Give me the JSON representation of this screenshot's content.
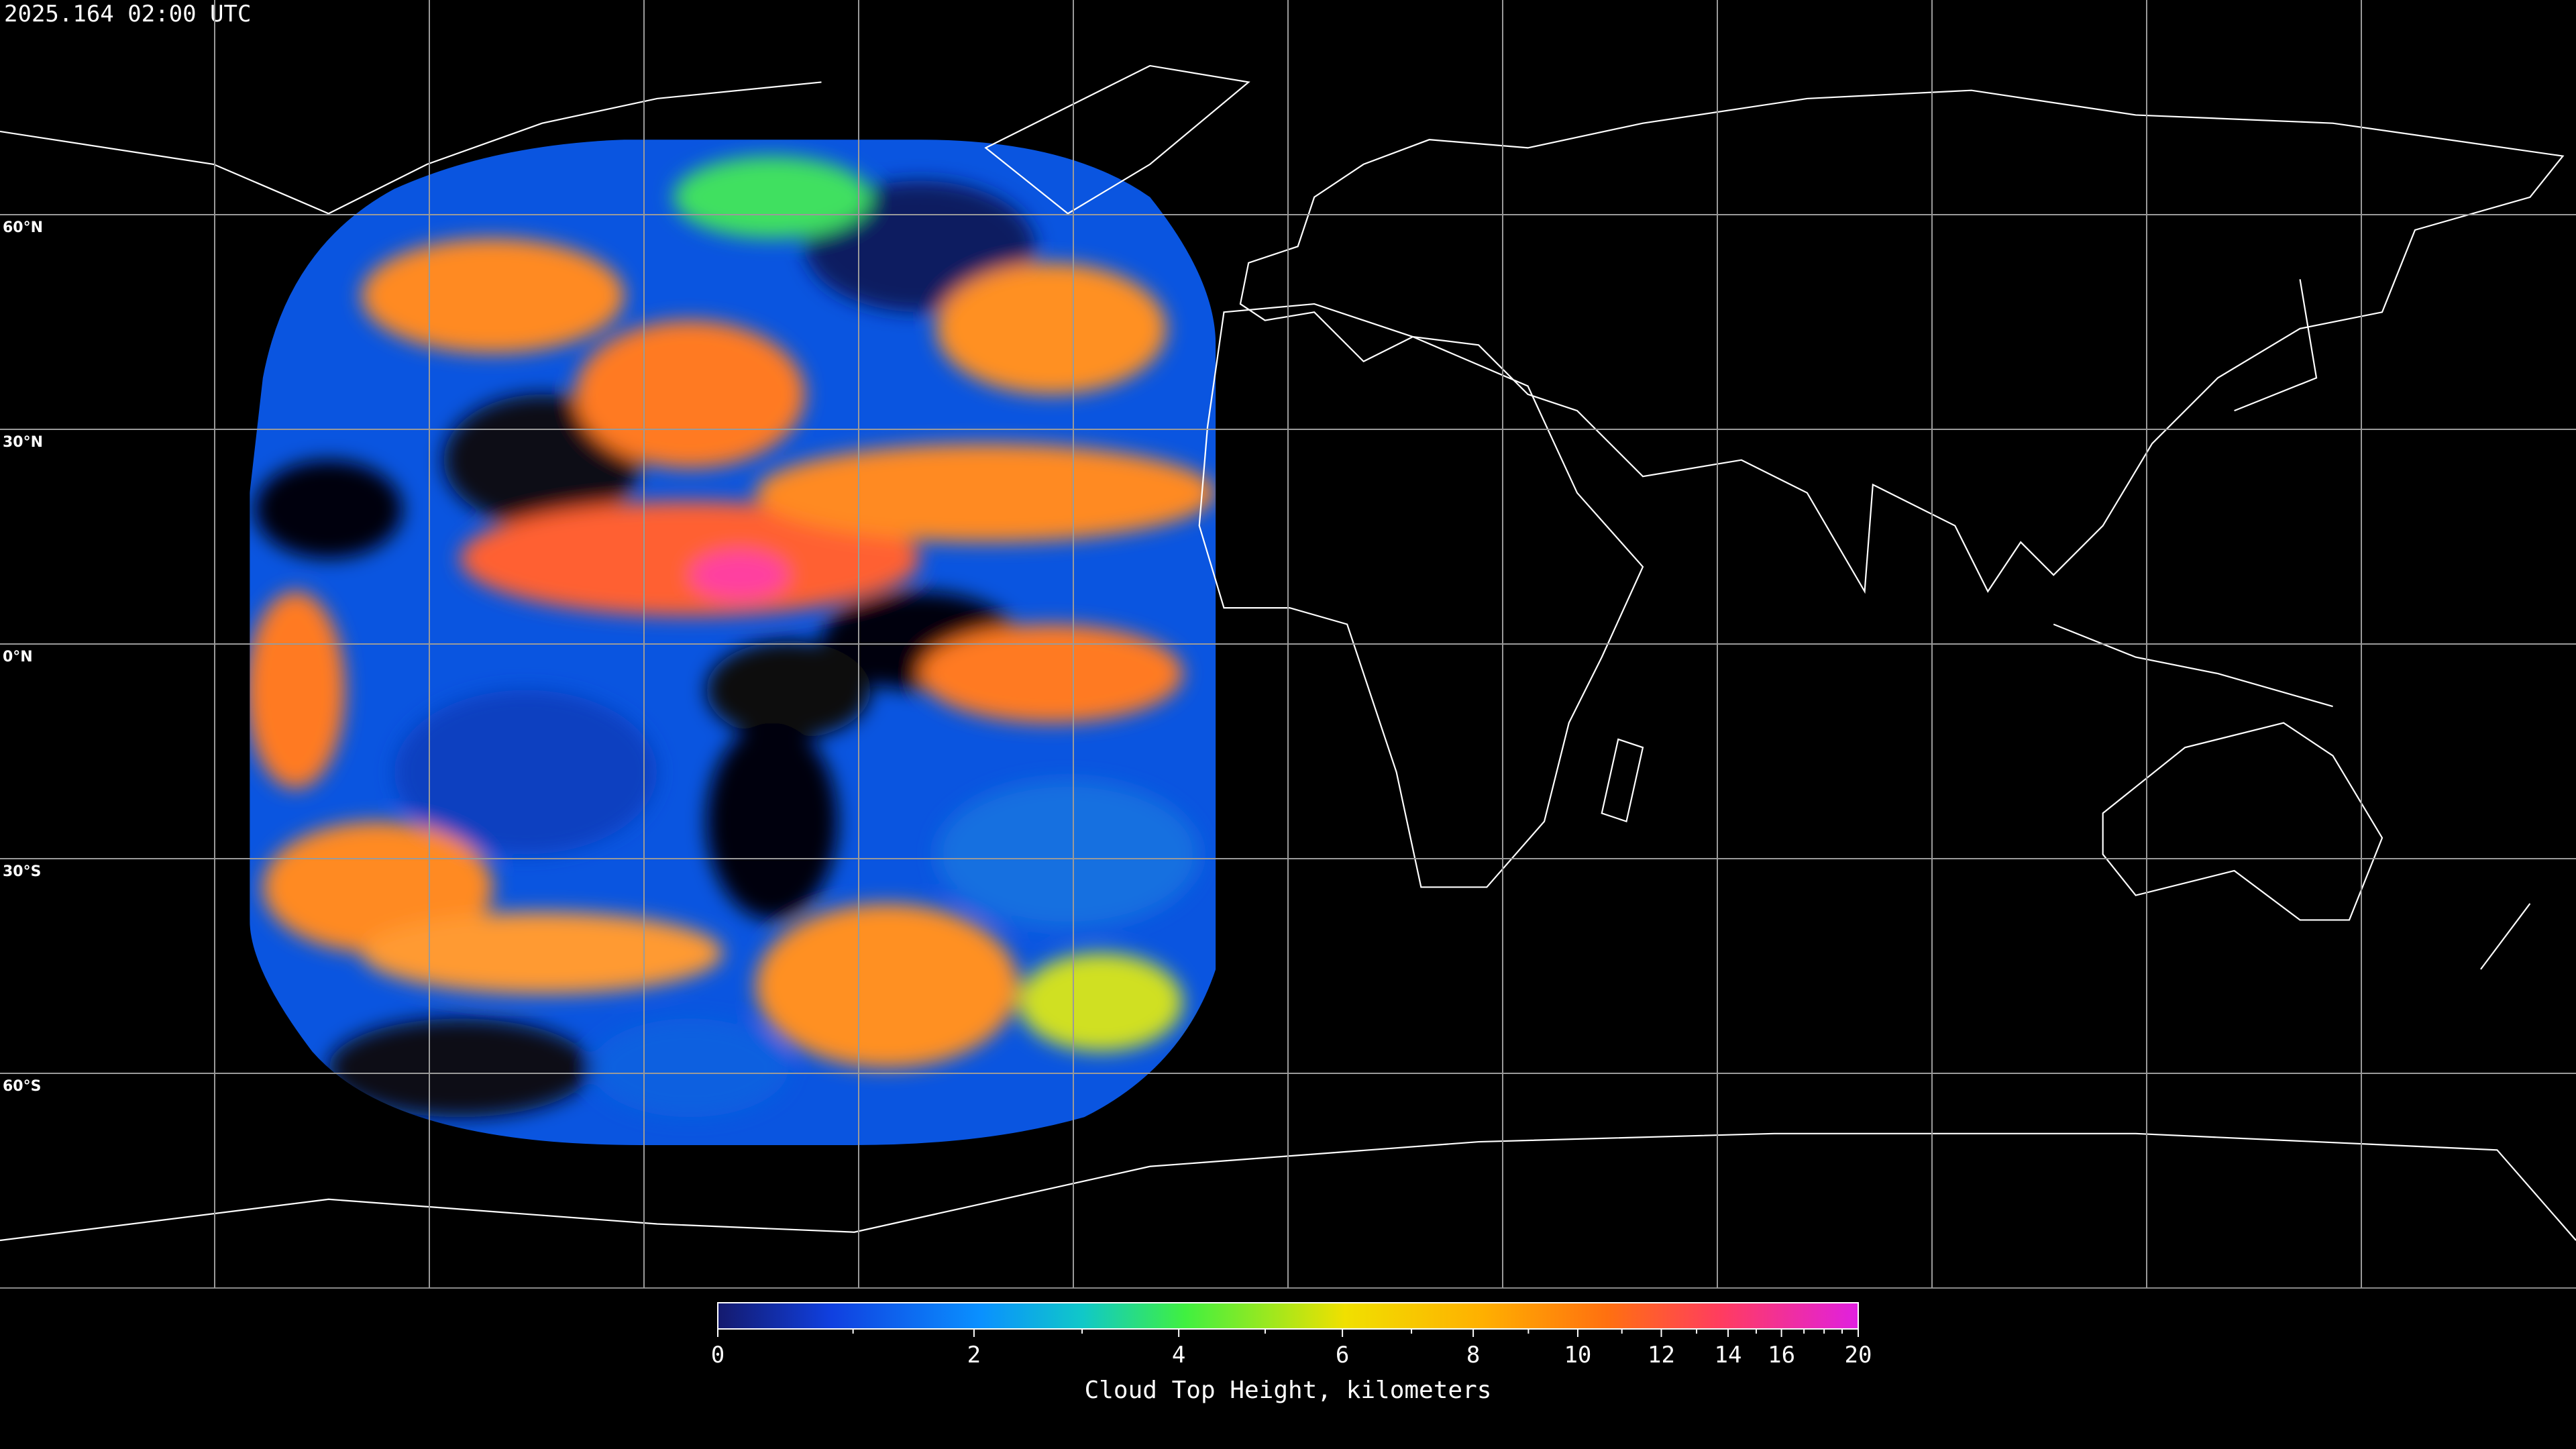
{
  "header": {
    "timestamp": "2025.164 02:00 UTC"
  },
  "map": {
    "type": "map",
    "projection": "equirectangular",
    "xlim": [
      -180,
      180
    ],
    "ylim": [
      -90,
      90
    ],
    "meridians": [
      -150,
      -120,
      -90,
      -60,
      -30,
      0,
      30,
      60,
      90,
      120,
      150
    ],
    "parallels": [
      {
        "value": 60,
        "label": "60°N"
      },
      {
        "value": 30,
        "label": "30°N"
      },
      {
        "value": 0,
        "label": "0°N"
      },
      {
        "value": -30,
        "label": "30°S"
      },
      {
        "value": -60,
        "label": "60°S"
      }
    ]
  },
  "colorbar": {
    "label": "Cloud Top Height, kilometers",
    "lim": [
      0,
      20
    ],
    "ticks": [
      0,
      2,
      4,
      6,
      8,
      10,
      12,
      14,
      16,
      20
    ],
    "minor_ticks": [
      1,
      3,
      5,
      7,
      9,
      11,
      13,
      15,
      17,
      18,
      19
    ]
  }
}
